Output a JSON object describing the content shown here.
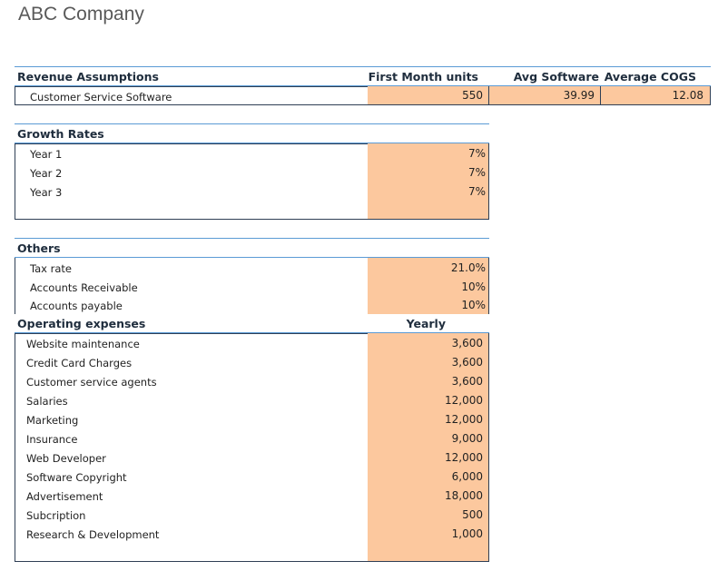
{
  "company": "ABC Company",
  "revenue": {
    "header": "Revenue Assumptions",
    "col1": "First Month units",
    "col2": "Avg Software price",
    "col3": "Average COGS",
    "row_label": "Customer Service Software",
    "units": "550",
    "price": "39.99",
    "cogs": "12.08"
  },
  "growth": {
    "header": "Growth Rates",
    "rows": [
      {
        "label": "Year 1",
        "value": "7%"
      },
      {
        "label": "Year 2",
        "value": "7%"
      },
      {
        "label": "Year 3",
        "value": "7%"
      }
    ]
  },
  "others": {
    "header": "Others",
    "rows": [
      {
        "label": "Tax rate",
        "value": "21.0%"
      },
      {
        "label": "Accounts Receivable",
        "value": "10%"
      },
      {
        "label": "Accounts payable",
        "value": "10%"
      }
    ]
  },
  "opex": {
    "header": "Operating expenses",
    "col": "Yearly",
    "rows": [
      {
        "label": "Website maintenance",
        "value": "3,600"
      },
      {
        "label": "Credit Card Charges",
        "value": "3,600"
      },
      {
        "label": "Customer service agents",
        "value": "3,600"
      },
      {
        "label": "Salaries",
        "value": "12,000"
      },
      {
        "label": "Marketing",
        "value": "12,000"
      },
      {
        "label": "Insurance",
        "value": "9,000"
      },
      {
        "label": "Web Developer",
        "value": "12,000"
      },
      {
        "label": "Software Copyright",
        "value": "6,000"
      },
      {
        "label": "Advertisement",
        "value": "18,000"
      },
      {
        "label": "Subcription",
        "value": "500"
      },
      {
        "label": "Research & Development",
        "value": "1,000"
      }
    ]
  },
  "colors": {
    "input_fill": "#fcc89e",
    "rule": "#5b9bd5",
    "border": "#2f3f55"
  }
}
